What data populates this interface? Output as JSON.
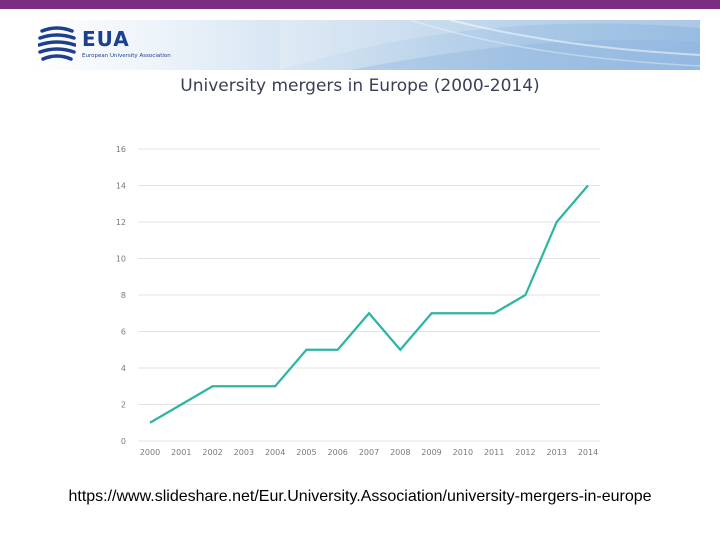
{
  "header": {
    "logo_text": "EUA",
    "logo_subtitle": "European University Association"
  },
  "colors": {
    "top_bar": "#7b2d81",
    "line": "#2cb5a0",
    "grid": "#e3e3e3",
    "tick_text": "#7a7a7a"
  },
  "chart_data": {
    "type": "line",
    "title": "University mergers in Europe (2000-2014)",
    "xlabel": "",
    "ylabel": "",
    "x": [
      "2000",
      "2001",
      "2002",
      "2003",
      "2004",
      "2005",
      "2006",
      "2007",
      "2008",
      "2009",
      "2010",
      "2011",
      "2012",
      "2013",
      "2014"
    ],
    "series": [
      {
        "values": [
          1,
          2,
          3,
          3,
          3,
          5,
          5,
          7,
          5,
          7,
          7,
          7,
          8,
          12,
          14
        ]
      }
    ],
    "ylim": [
      0,
      16
    ],
    "yticks": [
      0,
      2,
      4,
      6,
      8,
      10,
      12,
      14,
      16
    ],
    "grid": true,
    "legend": "none"
  },
  "footer": {
    "source_url": "https://www.slideshare.net/Eur.University.Association/university-mergers-in-europe"
  }
}
